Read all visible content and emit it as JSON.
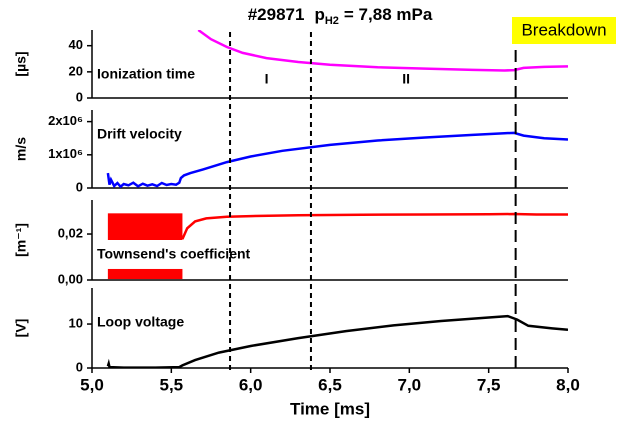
{
  "chart_data": [
    {
      "type": "line",
      "title": "#29871",
      "title_symbol": "p",
      "title_subscript": "H2",
      "title_value": "= 7,88 mPa",
      "badge": "Breakdown",
      "badge_color": "#ffff00",
      "label": "Ionization time",
      "ylabel": "[µs]",
      "xlim": [
        5,
        8
      ],
      "ylim": [
        0,
        52
      ],
      "yticks": [
        0,
        20,
        40
      ],
      "vlines": [
        5.87,
        6.38,
        7.67
      ],
      "annotations": [
        {
          "text": "I",
          "x": 6.1
        },
        {
          "text": "II",
          "x": 6.98
        }
      ],
      "series": [
        {
          "color": "#ff00ff",
          "x": [
            5.67,
            5.75,
            5.85,
            5.95,
            6.1,
            6.3,
            6.5,
            6.8,
            7.1,
            7.4,
            7.6,
            7.66,
            7.72,
            7.85,
            8.0
          ],
          "values": [
            52,
            45,
            39,
            34.5,
            30.5,
            27.5,
            25.5,
            23.5,
            22.5,
            21.5,
            21,
            21.3,
            23,
            23.8,
            24.2
          ]
        }
      ]
    },
    {
      "type": "line",
      "label": "Drift velocity",
      "ylabel": "m/s",
      "xlim": [
        5,
        8
      ],
      "ylim": [
        0,
        2350000
      ],
      "yticks": [
        0,
        {
          "value": 1000000,
          "label": "1x10⁶"
        },
        {
          "value": 2000000,
          "label": "2x10⁶"
        }
      ],
      "series": [
        {
          "color": "#0000ff",
          "x": [
            5.1,
            5.11,
            5.12,
            5.14,
            5.16,
            5.18,
            5.2,
            5.23,
            5.26,
            5.29,
            5.32,
            5.35,
            5.38,
            5.41,
            5.44,
            5.47,
            5.5,
            5.53,
            5.55,
            5.56,
            5.58,
            5.62,
            5.7,
            5.85,
            6.0,
            6.2,
            6.5,
            6.8,
            7.1,
            7.4,
            7.6,
            7.66,
            7.72,
            7.85,
            8.0
          ],
          "values": [
            450000,
            100000,
            250000,
            60000,
            150000,
            40000,
            120000,
            80000,
            160000,
            50000,
            130000,
            70000,
            110000,
            60000,
            150000,
            90000,
            120000,
            100000,
            160000,
            300000,
            380000,
            450000,
            560000,
            780000,
            950000,
            1120000,
            1300000,
            1430000,
            1520000,
            1600000,
            1650000,
            1660000,
            1580000,
            1500000,
            1460000
          ]
        }
      ]
    },
    {
      "type": "line",
      "label": "Townsend's coefficient",
      "ylabel": "[m⁻¹]",
      "xlim": [
        5,
        8
      ],
      "ylim": [
        0,
        0.0348
      ],
      "yticks": [
        {
          "value": 0,
          "label": "0,00"
        },
        {
          "value": 0.02,
          "label": "0,02"
        }
      ],
      "bands": [
        {
          "x": [
            5.1,
            5.57
          ],
          "y": [
            0.0174,
            0.029
          ]
        },
        {
          "x": [
            5.1,
            5.57
          ],
          "y": [
            0.0004,
            0.0048
          ]
        }
      ],
      "series": [
        {
          "color": "#ff0000",
          "x": [
            5.57,
            5.6,
            5.65,
            5.72,
            5.85,
            6.0,
            6.3,
            6.7,
            7.1,
            7.5,
            7.66,
            7.8,
            8.0
          ],
          "values": [
            0.0178,
            0.0225,
            0.0255,
            0.0268,
            0.0275,
            0.0278,
            0.0282,
            0.0284,
            0.0285,
            0.0286,
            0.0287,
            0.0285,
            0.0285
          ]
        }
      ]
    },
    {
      "type": "line",
      "label": "Loop voltage",
      "ylabel": "[V]",
      "xlim": [
        5,
        8
      ],
      "ylim": [
        0,
        18.2
      ],
      "yticks": [
        0,
        10
      ],
      "xlabel": "Time [ms]",
      "xticks": [
        {
          "value": 5,
          "label": "5,0"
        },
        {
          "value": 5.5,
          "label": "5,5"
        },
        {
          "value": 6,
          "label": "6,0"
        },
        {
          "value": 6.5,
          "label": "6,5"
        },
        {
          "value": 7,
          "label": "7,0"
        },
        {
          "value": 7.5,
          "label": "7,5"
        },
        {
          "value": 8,
          "label": "8,0"
        }
      ],
      "series": [
        {
          "color": "#000000",
          "x": [
            5.1,
            5.105,
            5.11,
            5.2,
            5.4,
            5.55,
            5.57,
            5.65,
            5.8,
            6.0,
            6.3,
            6.6,
            6.9,
            7.2,
            7.5,
            7.62,
            7.68,
            7.75,
            7.9,
            8.0
          ],
          "values": [
            0.4,
            1.0,
            0.2,
            0.1,
            0.1,
            0.2,
            0.6,
            1.8,
            3.5,
            5.0,
            6.8,
            8.4,
            9.7,
            10.7,
            11.5,
            11.8,
            11.0,
            9.6,
            9.0,
            8.7
          ]
        }
      ]
    }
  ]
}
